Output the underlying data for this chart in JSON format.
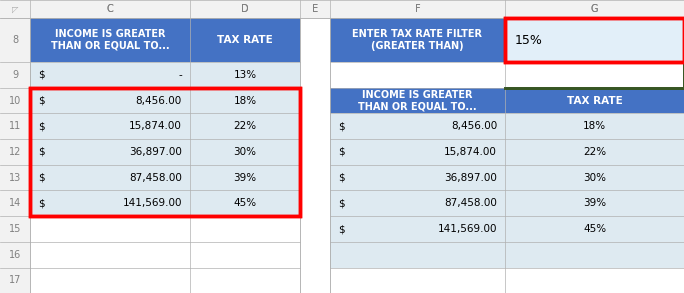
{
  "background_color": "#ffffff",
  "row_numbers": [
    "8",
    "9",
    "10",
    "11",
    "12",
    "13",
    "14",
    "15",
    "16",
    "17"
  ],
  "left_data_rows": [
    [
      "$",
      "-",
      "13%"
    ],
    [
      "$",
      "8,456.00",
      "18%"
    ],
    [
      "$",
      "15,874.00",
      "22%"
    ],
    [
      "$",
      "36,897.00",
      "30%"
    ],
    [
      "$",
      "87,458.00",
      "39%"
    ],
    [
      "$",
      "141,569.00",
      "45%"
    ]
  ],
  "right_filter_label": "ENTER TAX RATE FILTER\n(GREATER THAN)",
  "right_filter_value": "15%",
  "right_data_rows": [
    [
      "$",
      "8,456.00",
      "18%"
    ],
    [
      "$",
      "15,874.00",
      "22%"
    ],
    [
      "$",
      "36,897.00",
      "30%"
    ],
    [
      "$",
      "87,458.00",
      "39%"
    ],
    [
      "$",
      "141,569.00",
      "45%"
    ]
  ],
  "header_blue": "#4472C4",
  "header_text_white": "#ffffff",
  "cell_light_blue": "#DEEAF1",
  "cell_white": "#ffffff",
  "red_border": "#FF0000",
  "green_border": "#375623",
  "grid_line_color": "#b0b0b0",
  "row_num_color": "#808080",
  "col_letter_color": "#808080",
  "filter_value_bg": "#E2EFF9",
  "col_header_bg": "#f2f2f2",
  "row_header_bg": "#f2f2f2"
}
